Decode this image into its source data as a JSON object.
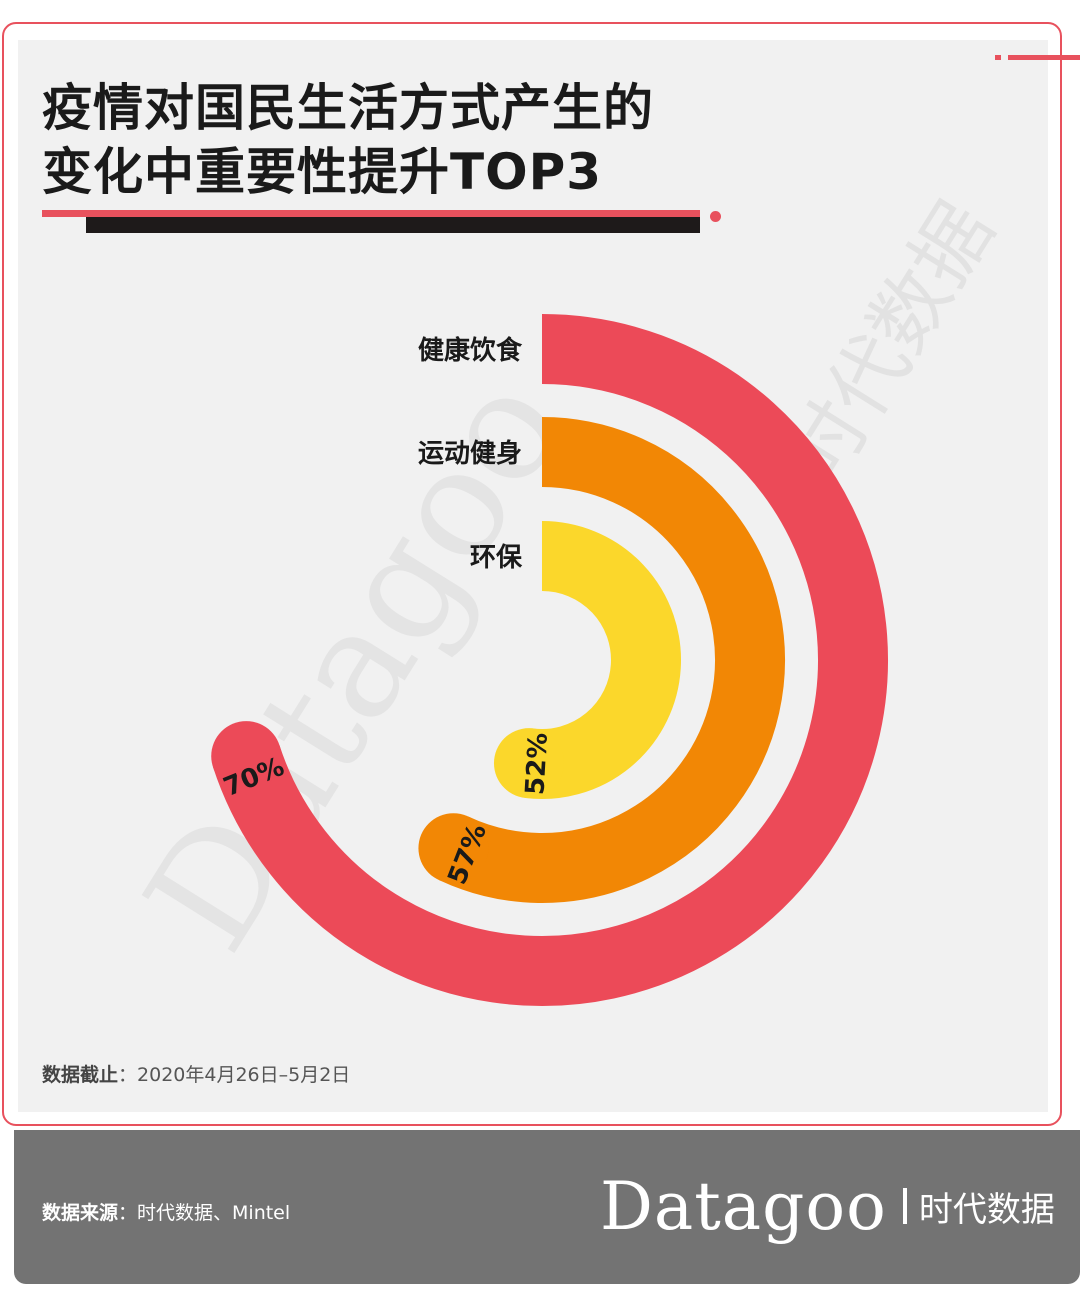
{
  "title_lines": [
    "疫情对国民生活方式产生的",
    "变化中重要性提升TOP3"
  ],
  "chart_data": {
    "type": "radial-bar",
    "series": [
      {
        "category": "健康饮食",
        "value": 70,
        "label": "70%",
        "color": "#ec4a58"
      },
      {
        "category": "运动健身",
        "value": 57,
        "label": "57%",
        "color": "#f28705"
      },
      {
        "category": "环保",
        "value": 52,
        "label": "52%",
        "color": "#fbd72b"
      }
    ],
    "unit": "%",
    "max": 100
  },
  "note": {
    "label": "数据截止",
    "text": "：2020年4月26日–5月2日"
  },
  "source": {
    "label": "数据来源",
    "text": "：时代数据、Mintel"
  },
  "brand": {
    "en": "Datagoo",
    "cn": "时代数据"
  },
  "watermark": {
    "en": "Datagoo",
    "cn": "时代数据"
  }
}
